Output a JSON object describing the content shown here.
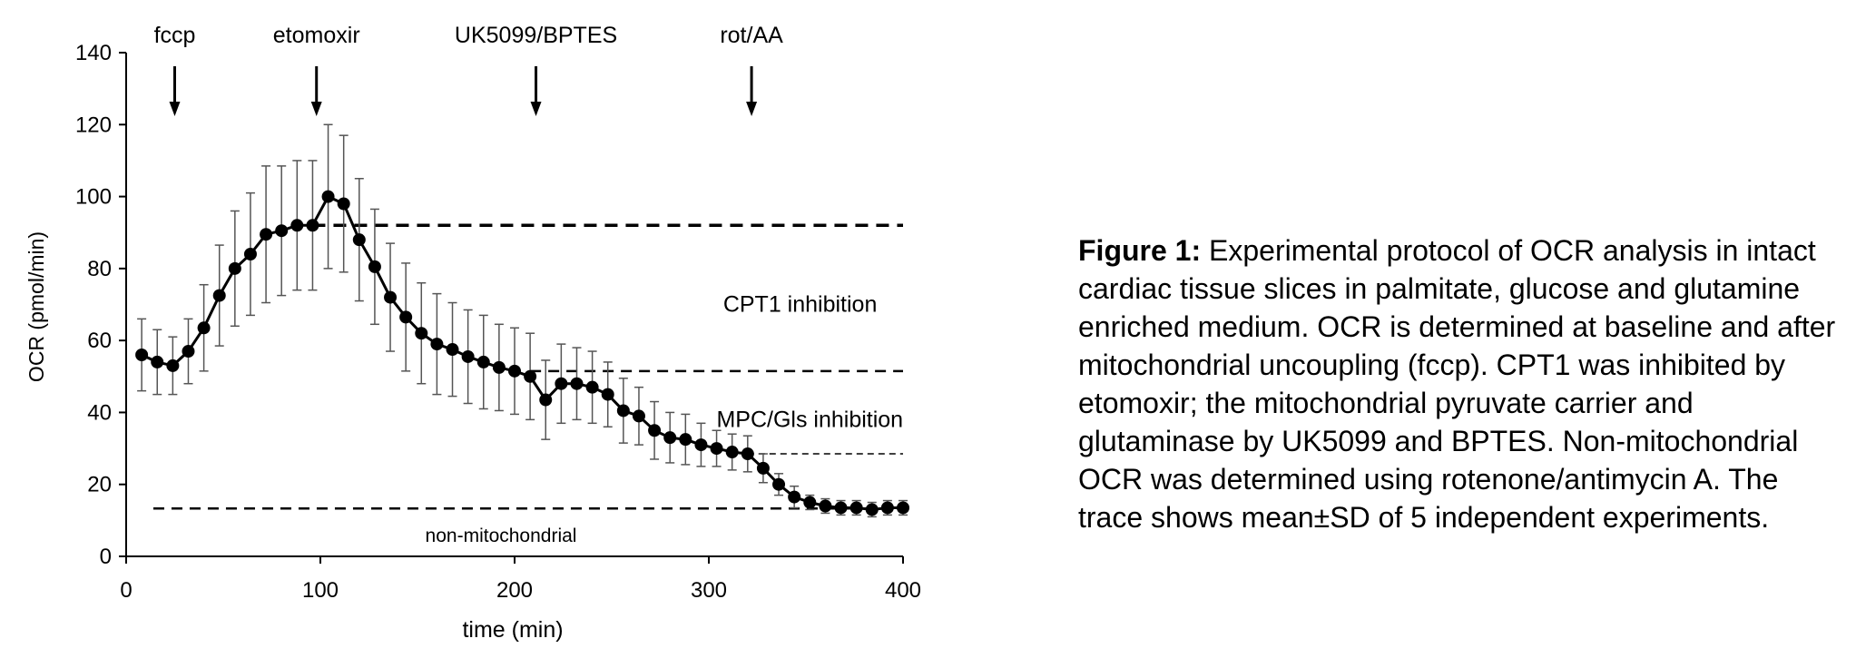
{
  "chart_data": {
    "type": "line",
    "xlabel": "time (min)",
    "ylabel": "OCR (pmol/min)",
    "xlim": [
      0,
      400
    ],
    "ylim": [
      0,
      140
    ],
    "xticks": [
      0,
      100,
      200,
      300,
      400
    ],
    "yticks": [
      0,
      20,
      40,
      60,
      80,
      100,
      120,
      140
    ],
    "grid": false,
    "error_bars": "mean±SD",
    "series": [
      {
        "points": [
          [
            8,
            56,
            10
          ],
          [
            16,
            54,
            9
          ],
          [
            24,
            53,
            8
          ],
          [
            32,
            57,
            9
          ],
          [
            40,
            63.5,
            12
          ],
          [
            48,
            72.5,
            14
          ],
          [
            56,
            80,
            16
          ],
          [
            64,
            84,
            17
          ],
          [
            72,
            89.5,
            19
          ],
          [
            80,
            90.5,
            18
          ],
          [
            88,
            92,
            18
          ],
          [
            96,
            92,
            18
          ],
          [
            104,
            100,
            20
          ],
          [
            112,
            98,
            19
          ],
          [
            120,
            88,
            17
          ],
          [
            128,
            80.5,
            16
          ],
          [
            136,
            72,
            15
          ],
          [
            144,
            66.5,
            15
          ],
          [
            152,
            62,
            14
          ],
          [
            160,
            59,
            14
          ],
          [
            168,
            57.5,
            13
          ],
          [
            176,
            55.5,
            13
          ],
          [
            184,
            54,
            13
          ],
          [
            192,
            52.5,
            12
          ],
          [
            200,
            51.5,
            12
          ],
          [
            208,
            50,
            12
          ],
          [
            216,
            43.5,
            11
          ],
          [
            224,
            48,
            11
          ],
          [
            232,
            48,
            10
          ],
          [
            240,
            47,
            10
          ],
          [
            248,
            45,
            9
          ],
          [
            256,
            40.5,
            9
          ],
          [
            264,
            39,
            8
          ],
          [
            272,
            35,
            8
          ],
          [
            280,
            33,
            7
          ],
          [
            288,
            32.5,
            7
          ],
          [
            296,
            31,
            6
          ],
          [
            304,
            30,
            5
          ],
          [
            312,
            29,
            5
          ],
          [
            320,
            28.5,
            5
          ],
          [
            328,
            24.5,
            4
          ],
          [
            336,
            20,
            3
          ],
          [
            344,
            16.5,
            3
          ],
          [
            352,
            15,
            2
          ],
          [
            360,
            14,
            2
          ],
          [
            368,
            13.5,
            2
          ],
          [
            376,
            13.5,
            2
          ],
          [
            384,
            13,
            2
          ],
          [
            392,
            13.5,
            2
          ],
          [
            400,
            13.5,
            2
          ]
        ]
      }
    ],
    "reference_lines": [
      {
        "y": 92,
        "from_x": 96,
        "to_x": 400,
        "style": "thick-dashed"
      },
      {
        "y": 51.5,
        "from_x": 208,
        "to_x": 400,
        "style": "dashed"
      },
      {
        "y": 28.5,
        "from_x": 320,
        "to_x": 400,
        "style": "thin-dashed"
      },
      {
        "y": 13.3,
        "from_x": 14,
        "to_x": 400,
        "style": "dashed"
      }
    ],
    "arrows": [
      {
        "label": "fccp",
        "x": 25
      },
      {
        "label": "etomoxir",
        "x": 98
      },
      {
        "label": "UK5099/BPTES",
        "x": 211
      },
      {
        "label": "rot/AA",
        "x": 322
      }
    ],
    "annotations": [
      {
        "text": "CPT1 inhibition",
        "x": 347,
        "y": 70
      },
      {
        "text": "MPC/Gls inhibition",
        "x": 352,
        "y": 38
      },
      {
        "text": "non-mitochondrial",
        "x": 193,
        "y": 6
      }
    ]
  },
  "caption": {
    "label": "Figure 1:",
    "text": " Experimental protocol of OCR analysis in intact cardiac tissue slices in palmitate, glucose and glutamine enriched medium. OCR is determined at baseline and after mitochondrial uncoupling (fccp). CPT1 was inhibited by etomoxir; the mitochondrial pyruvate carrier and glutaminase by UK5099 and BPTES. Non-mitochondrial OCR was determined using rotenone/antimycin A. The trace shows mean±SD of 5 independent experiments."
  }
}
